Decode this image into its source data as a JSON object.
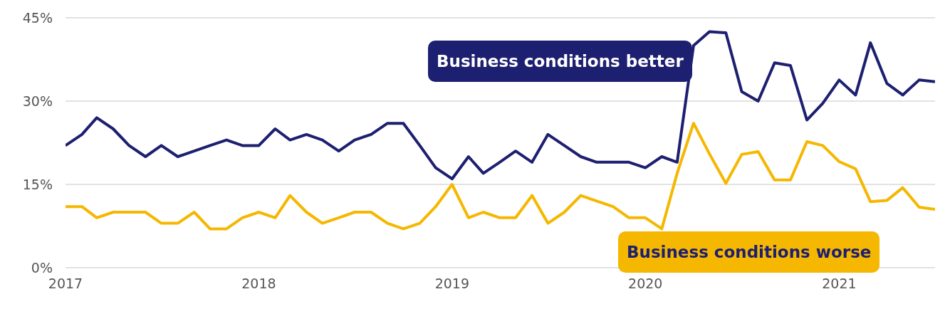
{
  "chart_data": {
    "type": "line",
    "x": [
      "2017-01",
      "2017-02",
      "2017-03",
      "2017-04",
      "2017-05",
      "2017-06",
      "2017-07",
      "2017-08",
      "2017-09",
      "2017-10",
      "2017-11",
      "2017-12",
      "2018-01",
      "2018-02",
      "2018-03",
      "2018-04",
      "2018-05",
      "2018-06",
      "2018-07",
      "2018-08",
      "2018-09",
      "2018-10",
      "2018-11",
      "2018-12",
      "2019-01",
      "2019-02",
      "2019-03",
      "2019-04",
      "2019-05",
      "2019-06",
      "2019-07",
      "2019-08",
      "2019-09",
      "2019-10",
      "2019-11",
      "2019-12",
      "2020-01",
      "2020-02",
      "2020-03",
      "2020-04",
      "2020-05",
      "2020-06",
      "2020-07",
      "2020-08",
      "2020-09",
      "2020-10",
      "2020-11",
      "2020-12",
      "2021-01",
      "2021-02",
      "2021-03",
      "2021-04",
      "2021-05",
      "2021-06",
      "2021-07"
    ],
    "series": [
      {
        "name": "Business conditions better",
        "color": "#1d1f70",
        "values": [
          22,
          24,
          27,
          25,
          22,
          20,
          22,
          20,
          21,
          22,
          23,
          22,
          22,
          25,
          23,
          24,
          23,
          21,
          23,
          24,
          26,
          26,
          22,
          18,
          16,
          20,
          17,
          19,
          21,
          19,
          24,
          22,
          20,
          19,
          19,
          19,
          18,
          20,
          19,
          40,
          42.5,
          42.3,
          31.7,
          30,
          36.9,
          36.4,
          26.6,
          29.6,
          33.8,
          31.1,
          40.5,
          33.2,
          31.1,
          33.8,
          33.5
        ]
      },
      {
        "name": "Business conditions worse",
        "color": "#f5b700",
        "values": [
          11,
          11,
          9,
          10,
          10,
          10,
          8,
          8,
          10,
          7,
          7,
          9,
          10,
          9,
          13,
          10,
          8,
          9,
          10,
          10,
          8,
          7,
          8,
          11,
          15,
          9,
          10,
          9,
          9,
          13,
          8,
          10,
          13,
          12,
          11,
          9,
          9,
          7,
          17,
          26,
          20.5,
          15.2,
          20.4,
          20.9,
          15.8,
          15.8,
          22.7,
          22,
          19.1,
          17.8,
          11.9,
          12.1,
          14.4,
          10.9,
          10.5
        ]
      }
    ],
    "xlim": [
      "2017-01",
      "2021-07"
    ],
    "xticks": [
      "2017",
      "2018",
      "2019",
      "2020",
      "2021"
    ],
    "ylim": [
      0,
      45
    ],
    "yticks": [
      {
        "value": 0,
        "label": "0%"
      },
      {
        "value": 15,
        "label": "15%"
      },
      {
        "value": 30,
        "label": "30%"
      },
      {
        "value": 45,
        "label": "45%"
      }
    ],
    "grid": "y",
    "legend": false,
    "marker": "none",
    "line_style": "solid"
  }
}
